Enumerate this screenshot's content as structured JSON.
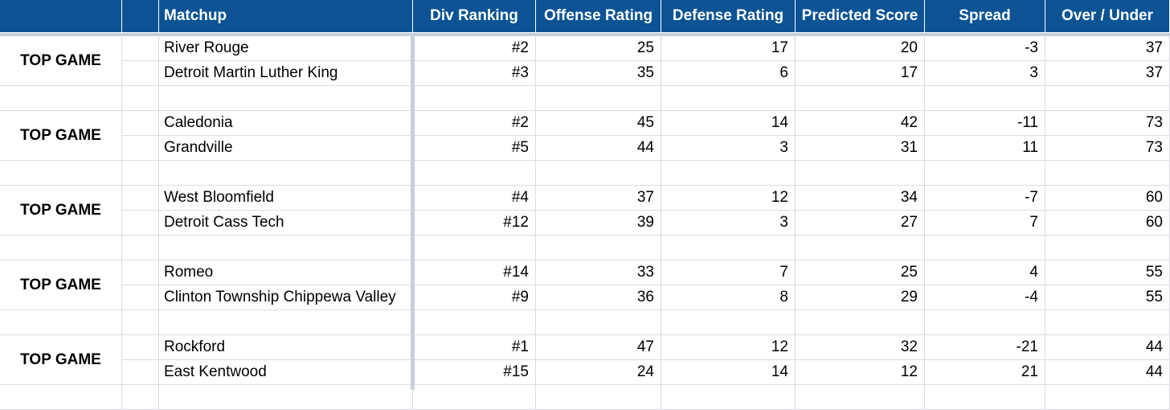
{
  "columns": {
    "matchup": "Matchup",
    "div_ranking": "Div Ranking",
    "offense_rating": "Offense Rating",
    "defense_rating": "Defense Rating",
    "predicted_score": "Predicted Score",
    "spread": "Spread",
    "over_under": "Over / Under"
  },
  "games": [
    {
      "label": "TOP GAME",
      "teams": [
        {
          "name": "River Rouge",
          "rank": "#2",
          "offense": "25",
          "defense": "17",
          "score": "20",
          "spread": "-3",
          "ou": "37"
        },
        {
          "name": "Detroit Martin Luther King",
          "rank": "#3",
          "offense": "35",
          "defense": "6",
          "score": "17",
          "spread": "3",
          "ou": "37"
        }
      ]
    },
    {
      "label": "TOP GAME",
      "teams": [
        {
          "name": "Caledonia",
          "rank": "#2",
          "offense": "45",
          "defense": "14",
          "score": "42",
          "spread": "-11",
          "ou": "73"
        },
        {
          "name": "Grandville",
          "rank": "#5",
          "offense": "44",
          "defense": "3",
          "score": "31",
          "spread": "11",
          "ou": "73"
        }
      ]
    },
    {
      "label": "TOP GAME",
      "teams": [
        {
          "name": "West Bloomfield",
          "rank": "#4",
          "offense": "37",
          "defense": "12",
          "score": "34",
          "spread": "-7",
          "ou": "60"
        },
        {
          "name": "Detroit Cass Tech",
          "rank": "#12",
          "offense": "39",
          "defense": "3",
          "score": "27",
          "spread": "7",
          "ou": "60"
        }
      ]
    },
    {
      "label": "TOP GAME",
      "teams": [
        {
          "name": "Romeo",
          "rank": "#14",
          "offense": "33",
          "defense": "7",
          "score": "25",
          "spread": "4",
          "ou": "55"
        },
        {
          "name": "Clinton Township Chippewa Valley",
          "rank": "#9",
          "offense": "36",
          "defense": "8",
          "score": "29",
          "spread": "-4",
          "ou": "55"
        }
      ]
    },
    {
      "label": "TOP GAME",
      "teams": [
        {
          "name": "Rockford",
          "rank": "#1",
          "offense": "47",
          "defense": "12",
          "score": "32",
          "spread": "-21",
          "ou": "44"
        },
        {
          "name": "East Kentwood",
          "rank": "#15",
          "offense": "24",
          "defense": "14",
          "score": "12",
          "spread": "21",
          "ou": "44"
        }
      ]
    }
  ]
}
